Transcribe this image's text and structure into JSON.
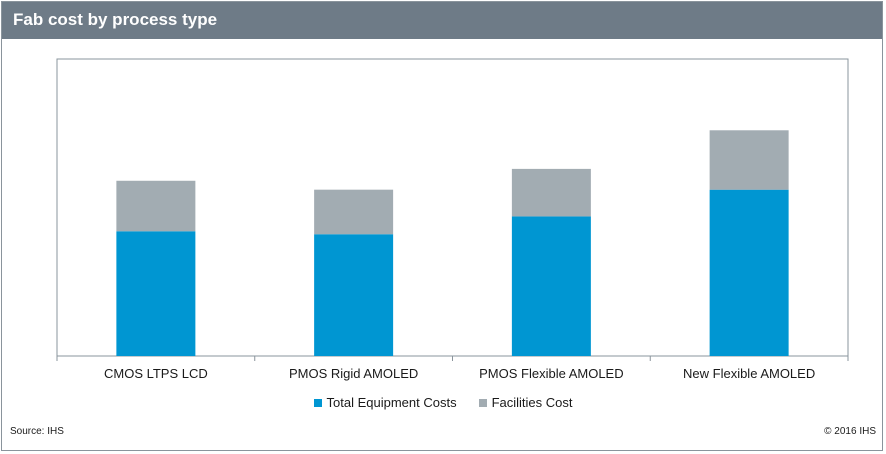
{
  "header": {
    "title": "Fab cost by process type"
  },
  "chart_data": {
    "type": "bar",
    "stacked": true,
    "categories": [
      "CMOS LTPS LCD",
      "PMOS Rigid AMOLED",
      "PMOS Flexible AMOLED",
      "New Flexible AMOLED"
    ],
    "series": [
      {
        "name": "Total Equipment Costs",
        "color": "#0096d2",
        "values": [
          42,
          41,
          47,
          56
        ]
      },
      {
        "name": "Facilities Cost",
        "color": "#a2acb2",
        "values": [
          17,
          15,
          16,
          20
        ]
      }
    ],
    "ylim": [
      0,
      100
    ],
    "grid": false,
    "legend_position": "bottom"
  },
  "footer": {
    "source": "Source: IHS",
    "copyright": "© 2016 IHS"
  }
}
